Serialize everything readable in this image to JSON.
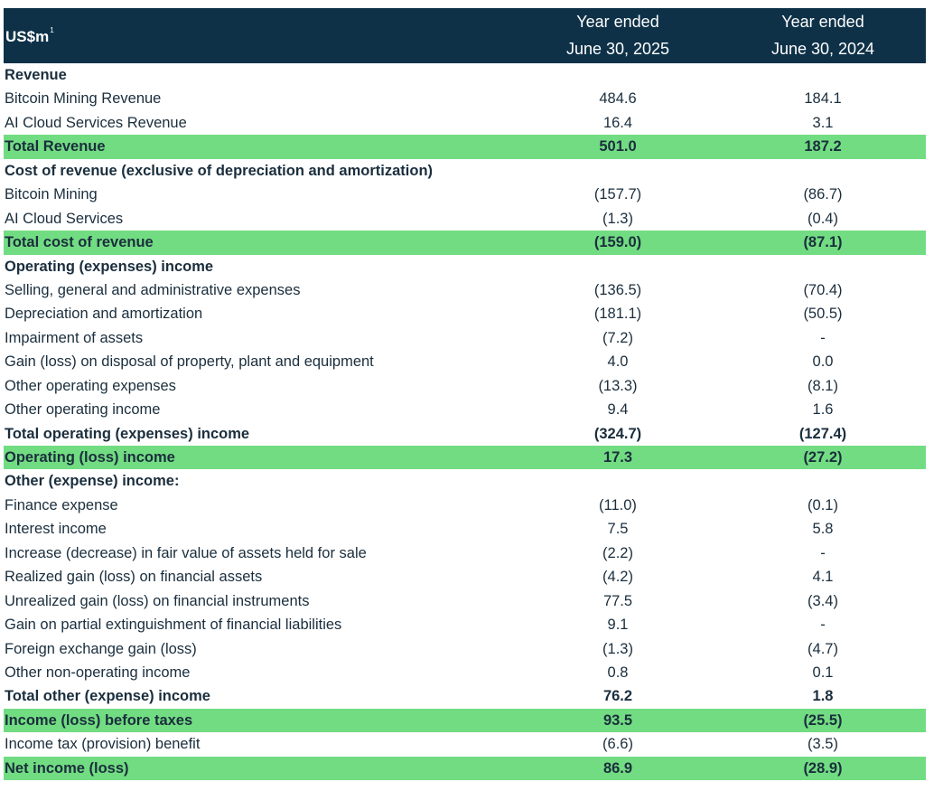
{
  "colors": {
    "header_bg": "#0e3148",
    "highlight_bg": "#72dc82",
    "text": "#1a2e3d"
  },
  "header": {
    "unit": "US$m",
    "footnote": "1",
    "col1_line1": "Year ended",
    "col1_line2": "June 30, 2025",
    "col2_line1": "Year ended",
    "col2_line2": "June 30, 2024"
  },
  "rows": [
    {
      "label": "Revenue",
      "v1": "",
      "v2": "",
      "style": "section"
    },
    {
      "label": "Bitcoin Mining Revenue",
      "v1": "484.6",
      "v2": "184.1",
      "style": "normal"
    },
    {
      "label": "AI Cloud Services Revenue",
      "v1": "16.4",
      "v2": "3.1",
      "style": "normal"
    },
    {
      "label": "Total Revenue",
      "v1": "501.0",
      "v2": "187.2",
      "style": "highlight"
    },
    {
      "label": "Cost of revenue (exclusive of depreciation and amortization)",
      "v1": "",
      "v2": "",
      "style": "section"
    },
    {
      "label": "Bitcoin Mining",
      "v1": "(157.7)",
      "v2": "(86.7)",
      "style": "normal"
    },
    {
      "label": "AI Cloud Services",
      "v1": "(1.3)",
      "v2": "(0.4)",
      "style": "normal"
    },
    {
      "label": "Total cost of revenue",
      "v1": "(159.0)",
      "v2": "(87.1)",
      "style": "highlight"
    },
    {
      "label": "Operating (expenses) income",
      "v1": "",
      "v2": "",
      "style": "section"
    },
    {
      "label": "Selling, general and administrative expenses",
      "v1": "(136.5)",
      "v2": "(70.4)",
      "style": "normal"
    },
    {
      "label": "Depreciation and amortization",
      "v1": "(181.1)",
      "v2": "(50.5)",
      "style": "normal"
    },
    {
      "label": "Impairment of assets",
      "v1": "(7.2)",
      "v2": "-",
      "style": "normal"
    },
    {
      "label": "Gain (loss) on disposal of property, plant and equipment",
      "v1": "4.0",
      "v2": "0.0",
      "style": "normal"
    },
    {
      "label": "Other operating expenses",
      "v1": "(13.3)",
      "v2": "(8.1)",
      "style": "normal"
    },
    {
      "label": "Other operating income",
      "v1": "9.4",
      "v2": "1.6",
      "style": "normal"
    },
    {
      "label": "Total operating (expenses) income",
      "v1": "(324.7)",
      "v2": "(127.4)",
      "style": "bold"
    },
    {
      "label": "Operating (loss) income",
      "v1": "17.3",
      "v2": "(27.2)",
      "style": "highlight"
    },
    {
      "label": "Other (expense) income:",
      "v1": "",
      "v2": "",
      "style": "section"
    },
    {
      "label": "Finance expense",
      "v1": "(11.0)",
      "v2": "(0.1)",
      "style": "normal"
    },
    {
      "label": "Interest income",
      "v1": "7.5",
      "v2": "5.8",
      "style": "normal"
    },
    {
      "label": "Increase (decrease) in fair value of assets held for sale",
      "v1": "(2.2)",
      "v2": "-",
      "style": "normal"
    },
    {
      "label": "Realized gain (loss) on financial assets",
      "v1": "(4.2)",
      "v2": "4.1",
      "style": "normal"
    },
    {
      "label": "Unrealized gain (loss) on financial instruments",
      "v1": "77.5",
      "v2": "(3.4)",
      "style": "normal"
    },
    {
      "label": "Gain on partial extinguishment of financial liabilities",
      "v1": "9.1",
      "v2": "-",
      "style": "normal"
    },
    {
      "label": "Foreign exchange gain (loss)",
      "v1": "(1.3)",
      "v2": "(4.7)",
      "style": "normal"
    },
    {
      "label": "Other non-operating income",
      "v1": "0.8",
      "v2": "0.1",
      "style": "normal"
    },
    {
      "label": "Total other (expense) income",
      "v1": "76.2",
      "v2": "1.8",
      "style": "bold"
    },
    {
      "label": "Income (loss) before taxes",
      "v1": "93.5",
      "v2": "(25.5)",
      "style": "highlight"
    },
    {
      "label": "Income tax (provision) benefit",
      "v1": "(6.6)",
      "v2": "(3.5)",
      "style": "normal"
    },
    {
      "label": "Net income (loss)",
      "v1": "86.9",
      "v2": "(28.9)",
      "style": "highlight"
    }
  ]
}
